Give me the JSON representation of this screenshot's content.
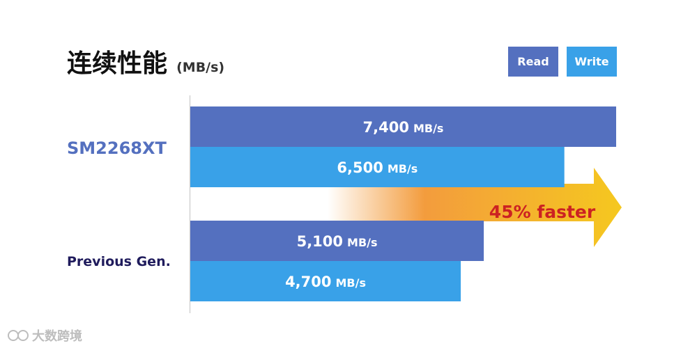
{
  "chart_data": {
    "type": "bar",
    "title": "连续性能",
    "unit": "(MB/s)",
    "categories": [
      "SM2268XT",
      "Previous Gen."
    ],
    "series": [
      {
        "name": "Read",
        "values": [
          7400,
          5100
        ],
        "color": "#5470bf"
      },
      {
        "name": "Write",
        "values": [
          6500,
          4700
        ],
        "color": "#39a1e8"
      }
    ],
    "value_labels": [
      [
        "7,400",
        "6,500"
      ],
      [
        "5,100",
        "4,700"
      ]
    ],
    "value_unit": "MB/s",
    "xlim": [
      0,
      7400
    ],
    "orientation": "horizontal",
    "legend": "top-right",
    "annotation": "45% faster",
    "colors": {
      "arrow_start": "#f39c3d",
      "arrow_end": "#f5c81f",
      "annotation_text": "#cc2222"
    }
  },
  "watermark": "大数跨境"
}
